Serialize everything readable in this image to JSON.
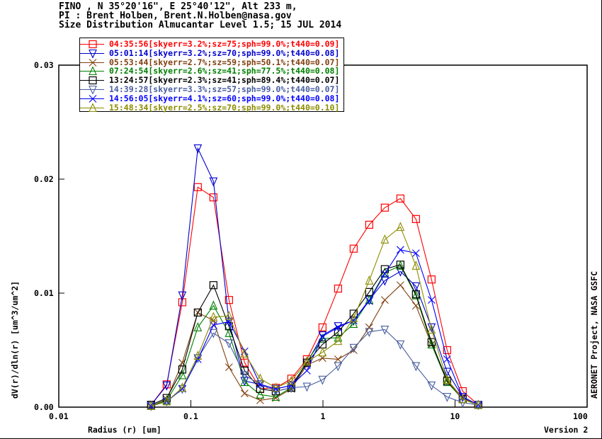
{
  "header": {
    "line1": "FINO , N 35°20'16\", E 25°40'12\", Alt 233 m,",
    "line2": "PI : Brent Holben, Brent.N.Holben@nasa.gov",
    "line3": "Size Distribution Almucantar Level 1.5; 15 JUL 2014"
  },
  "footer": {
    "version": "Version 2",
    "credit": "AERONET Project, NASA GSFC"
  },
  "chart_data": {
    "type": "line",
    "title": "Size Distribution Almucantar Level 1.5; 15 JUL 2014",
    "xlabel": "Radius (r) [um]",
    "ylabel": "dV(r)/dln(r) [um^3/um^2]",
    "xscale": "log",
    "xlim": [
      0.01,
      100
    ],
    "ylim": [
      0,
      0.03
    ],
    "xticks": [
      {
        "v": 0.01,
        "label": "0.01"
      },
      {
        "v": 0.1,
        "label": "0.1"
      },
      {
        "v": 1,
        "label": "1"
      },
      {
        "v": 10,
        "label": "10"
      },
      {
        "v": 100,
        "label": "100"
      }
    ],
    "yticks": [
      {
        "v": 0,
        "label": "0.00"
      },
      {
        "v": 0.01,
        "label": "0.01"
      },
      {
        "v": 0.02,
        "label": "0.02"
      },
      {
        "v": 0.03,
        "label": "0.03"
      }
    ],
    "grid": false,
    "legend_position": "top-left",
    "x": [
      0.05,
      0.0656,
      0.0861,
      0.1129,
      0.1482,
      0.1944,
      0.2551,
      0.3347,
      0.4392,
      0.5762,
      0.7561,
      0.992,
      1.3016,
      1.7078,
      2.2407,
      2.94,
      3.8575,
      5.0613,
      6.6407,
      8.7131,
      11.4323,
      15.0
    ],
    "series": [
      {
        "name": "04:35:56[skyerr=3.2%;sz=75;sph=99.0%;t440=0.09]",
        "color": "#ff0000",
        "marker": "square",
        "values": [
          0.0002,
          0.002,
          0.0092,
          0.0193,
          0.0184,
          0.0094,
          0.0039,
          0.0016,
          0.0017,
          0.0025,
          0.0042,
          0.007,
          0.0104,
          0.0139,
          0.016,
          0.0175,
          0.0183,
          0.0165,
          0.0112,
          0.005,
          0.0014,
          0.0002
        ]
      },
      {
        "name": "05:01:14[skyerr=3.2%;sz=70;sph=99.0%;t440=0.08]",
        "color": "#0000d0",
        "marker": "triangle-down",
        "values": [
          0.0002,
          0.0019,
          0.0098,
          0.0227,
          0.0198,
          0.0075,
          0.0023,
          0.002,
          0.0016,
          0.0019,
          0.0039,
          0.0063,
          0.0071,
          0.0076,
          0.0094,
          0.0111,
          0.0119,
          0.0106,
          0.007,
          0.0031,
          0.0009,
          0.0002
        ]
      },
      {
        "name": "05:53:44[skyerr=2.7%;sz=59;sph=50.1%;t440=0.07]",
        "color": "#804010",
        "marker": "x",
        "values": [
          0.0001,
          0.0007,
          0.0039,
          0.0083,
          0.0076,
          0.0035,
          0.0012,
          0.0006,
          0.0008,
          0.0016,
          0.0037,
          0.0043,
          0.0042,
          0.005,
          0.007,
          0.0094,
          0.0107,
          0.0089,
          0.0055,
          0.0024,
          0.0008,
          0.0002
        ]
      },
      {
        "name": "07:24:54[skyerr=2.6%;sz=41;sph=77.5%;t440=0.08]",
        "color": "#008000",
        "marker": "triangle-up",
        "values": [
          0.0001,
          0.0006,
          0.0028,
          0.007,
          0.0089,
          0.0065,
          0.0022,
          0.0011,
          0.0009,
          0.0017,
          0.004,
          0.006,
          0.0061,
          0.0073,
          0.0094,
          0.0118,
          0.0124,
          0.0098,
          0.0055,
          0.0022,
          0.0007,
          0.0002
        ]
      },
      {
        "name": "13:24:57[skyerr=2.3%;sz=41;sph=89.4%;t440=0.07]",
        "color": "#000000",
        "marker": "square",
        "values": [
          0.0002,
          0.0008,
          0.0033,
          0.0083,
          0.0107,
          0.0071,
          0.0032,
          0.0016,
          0.0014,
          0.0017,
          0.0039,
          0.0055,
          0.0066,
          0.0082,
          0.0101,
          0.0121,
          0.0125,
          0.0099,
          0.0057,
          0.0023,
          0.0007,
          0.0002
        ]
      },
      {
        "name": "14:39:28[skyerr=3.3%;sz=57;sph=99.0%;t440=0.07]",
        "color": "#4a5fa0",
        "marker": "triangle-down",
        "values": [
          0.0001,
          0.0005,
          0.0016,
          0.0043,
          0.0065,
          0.0056,
          0.0028,
          0.002,
          0.0014,
          0.0017,
          0.0018,
          0.0024,
          0.0036,
          0.0052,
          0.0066,
          0.0068,
          0.0055,
          0.0036,
          0.0019,
          0.0009,
          0.0004,
          0.0002
        ]
      },
      {
        "name": "14:56:05[skyerr=4.1%;sz=60;sph=99.0%;t440=0.08]",
        "color": "#0000ff",
        "marker": "x",
        "values": [
          0.0001,
          0.0005,
          0.0016,
          0.0042,
          0.0072,
          0.0075,
          0.0049,
          0.002,
          0.0016,
          0.0019,
          0.0032,
          0.0062,
          0.007,
          0.0076,
          0.0093,
          0.0117,
          0.0138,
          0.0135,
          0.0094,
          0.0042,
          0.0009,
          0.0002
        ]
      },
      {
        "name": "15:48:34[skyerr=2.5%;sz=70;sph=99.0%;t440=0.10]",
        "color": "#8c8c00",
        "marker": "triangle-up",
        "values": [
          0.0001,
          0.0005,
          0.0017,
          0.0045,
          0.0079,
          0.008,
          0.0047,
          0.0025,
          0.0017,
          0.0023,
          0.004,
          0.0048,
          0.0058,
          0.0078,
          0.0111,
          0.0147,
          0.0158,
          0.0124,
          0.0068,
          0.0024,
          0.0007,
          0.0002
        ]
      }
    ]
  }
}
